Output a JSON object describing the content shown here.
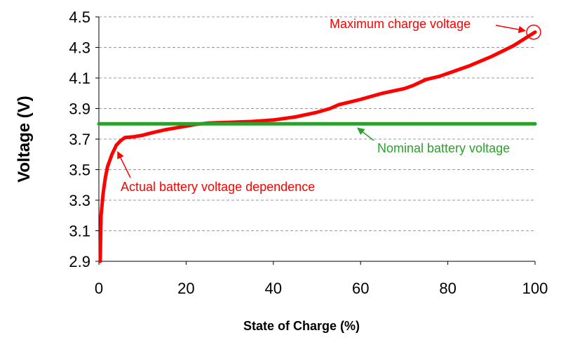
{
  "chart_data": {
    "type": "line",
    "xlabel": "State of Charge (%)",
    "ylabel": "Voltage (V)",
    "xlim": [
      0,
      100
    ],
    "ylim": [
      2.9,
      4.5
    ],
    "x_ticks": [
      0,
      20,
      40,
      60,
      80,
      100
    ],
    "y_ticks": [
      2.9,
      3.1,
      3.3,
      3.5,
      3.7,
      3.9,
      4.1,
      4.3,
      4.5
    ],
    "grid": "horizontal dashed",
    "colors": {
      "actual": "#ff0000",
      "nominal": "#2ca02c"
    },
    "series": [
      {
        "name": "Actual battery voltage dependence",
        "x": [
          0.3,
          0.5,
          1,
          1.5,
          2,
          3,
          4,
          5,
          6,
          8,
          10,
          12,
          15,
          18,
          20,
          22,
          25,
          28,
          30,
          35,
          40,
          45,
          50,
          53,
          55,
          60,
          65,
          70,
          72,
          75,
          78,
          80,
          85,
          90,
          95,
          100
        ],
        "y": [
          2.9,
          3.2,
          3.35,
          3.45,
          3.52,
          3.6,
          3.66,
          3.69,
          3.71,
          3.715,
          3.725,
          3.74,
          3.76,
          3.775,
          3.785,
          3.795,
          3.805,
          3.808,
          3.81,
          3.815,
          3.825,
          3.845,
          3.875,
          3.9,
          3.925,
          3.96,
          4.0,
          4.03,
          4.05,
          4.09,
          4.11,
          4.13,
          4.18,
          4.24,
          4.31,
          4.4
        ]
      },
      {
        "name": "Nominal battery voltage",
        "x": [
          0,
          100
        ],
        "y": [
          3.8,
          3.8
        ]
      }
    ],
    "annotations": [
      {
        "text": "Maximum charge voltage",
        "x": 100,
        "y": 4.4,
        "color": "#ff0000"
      },
      {
        "text": "Nominal battery voltage",
        "x": 59,
        "y": 3.8,
        "color": "#2ca02c"
      },
      {
        "text": "Actual battery voltage dependence",
        "x": 3.5,
        "y": 3.64,
        "color": "#ff0000"
      }
    ]
  }
}
